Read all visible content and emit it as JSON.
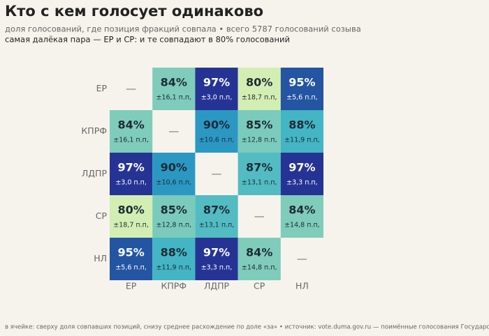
{
  "chart_data": {
    "type": "heatmap",
    "title": "Кто с кем голосует одинаково",
    "subtitle": "доля голосований, где позиция фракций совпала • всего 5787 голосований созыва",
    "annotation": "самая далёкая пара — ЕР и СР: и те совпадают в 80% голосований",
    "footer": "в ячейке: сверху доля совпавших позиций, снизу среднее расхождение по доле «за» • источник: vote.duma.gov.ru — поимённые голосования Государственной Думы",
    "categories": [
      "ЕР",
      "КПРФ",
      "ЛДПР",
      "СР",
      "НЛ"
    ],
    "values": [
      [
        null,
        84,
        97,
        80,
        95
      ],
      [
        84,
        null,
        90,
        85,
        88
      ],
      [
        97,
        90,
        null,
        87,
        97
      ],
      [
        80,
        85,
        87,
        null,
        84
      ],
      [
        95,
        88,
        97,
        84,
        null
      ]
    ],
    "value_labels": [
      [
        "—",
        "84%",
        "97%",
        "80%",
        "95%"
      ],
      [
        "84%",
        "—",
        "90%",
        "85%",
        "88%"
      ],
      [
        "97%",
        "90%",
        "—",
        "87%",
        "97%"
      ],
      [
        "80%",
        "85%",
        "87%",
        "—",
        "84%"
      ],
      [
        "95%",
        "88%",
        "97%",
        "84%",
        "—"
      ]
    ],
    "spread_values": [
      [
        null,
        16.1,
        3.0,
        18.7,
        5.6
      ],
      [
        16.1,
        null,
        10.6,
        12.8,
        11.9
      ],
      [
        3.0,
        10.6,
        null,
        13.1,
        3.3
      ],
      [
        18.7,
        12.8,
        13.1,
        null,
        14.8
      ],
      [
        5.6,
        11.9,
        3.3,
        14.8,
        null
      ]
    ],
    "spread_labels": [
      [
        null,
        "±16,1 п.п,",
        "±3,0 п.п,",
        "±18,7 п.п,",
        "±5,6 п.п,"
      ],
      [
        "±16,1 п.п,",
        null,
        "±10,6 п.п,",
        "±12,8 п.п,",
        "±11,9 п.п,"
      ],
      [
        "±3,0 п.п,",
        "±10,6 п.п,",
        null,
        "±13,1 п.п,",
        "±3,3 п.п,"
      ],
      [
        "±18,7 п.п,",
        "±12,8 п.п,",
        "±13,1 п.п,",
        null,
        "±14,8 п.п,"
      ],
      [
        "±5,6 п.п,",
        "±11,9 п.п,",
        "±3,3 п.п,",
        "±14,8 п.п,",
        null
      ]
    ],
    "colors": [
      [
        null,
        "#7fccba",
        "#253494",
        "#d3eeb2",
        "#2355a2"
      ],
      [
        "#7fccba",
        null,
        "#2b98c3",
        "#7acbbc",
        "#43b5c4"
      ],
      [
        "#253494",
        "#2b98c3",
        null,
        "#52bcc2",
        "#253494"
      ],
      [
        "#d3eeb2",
        "#7acbbc",
        "#52bcc2",
        null,
        "#7fccba"
      ],
      [
        "#2355a2",
        "#43b5c4",
        "#253494",
        "#7fccba",
        null
      ]
    ]
  }
}
